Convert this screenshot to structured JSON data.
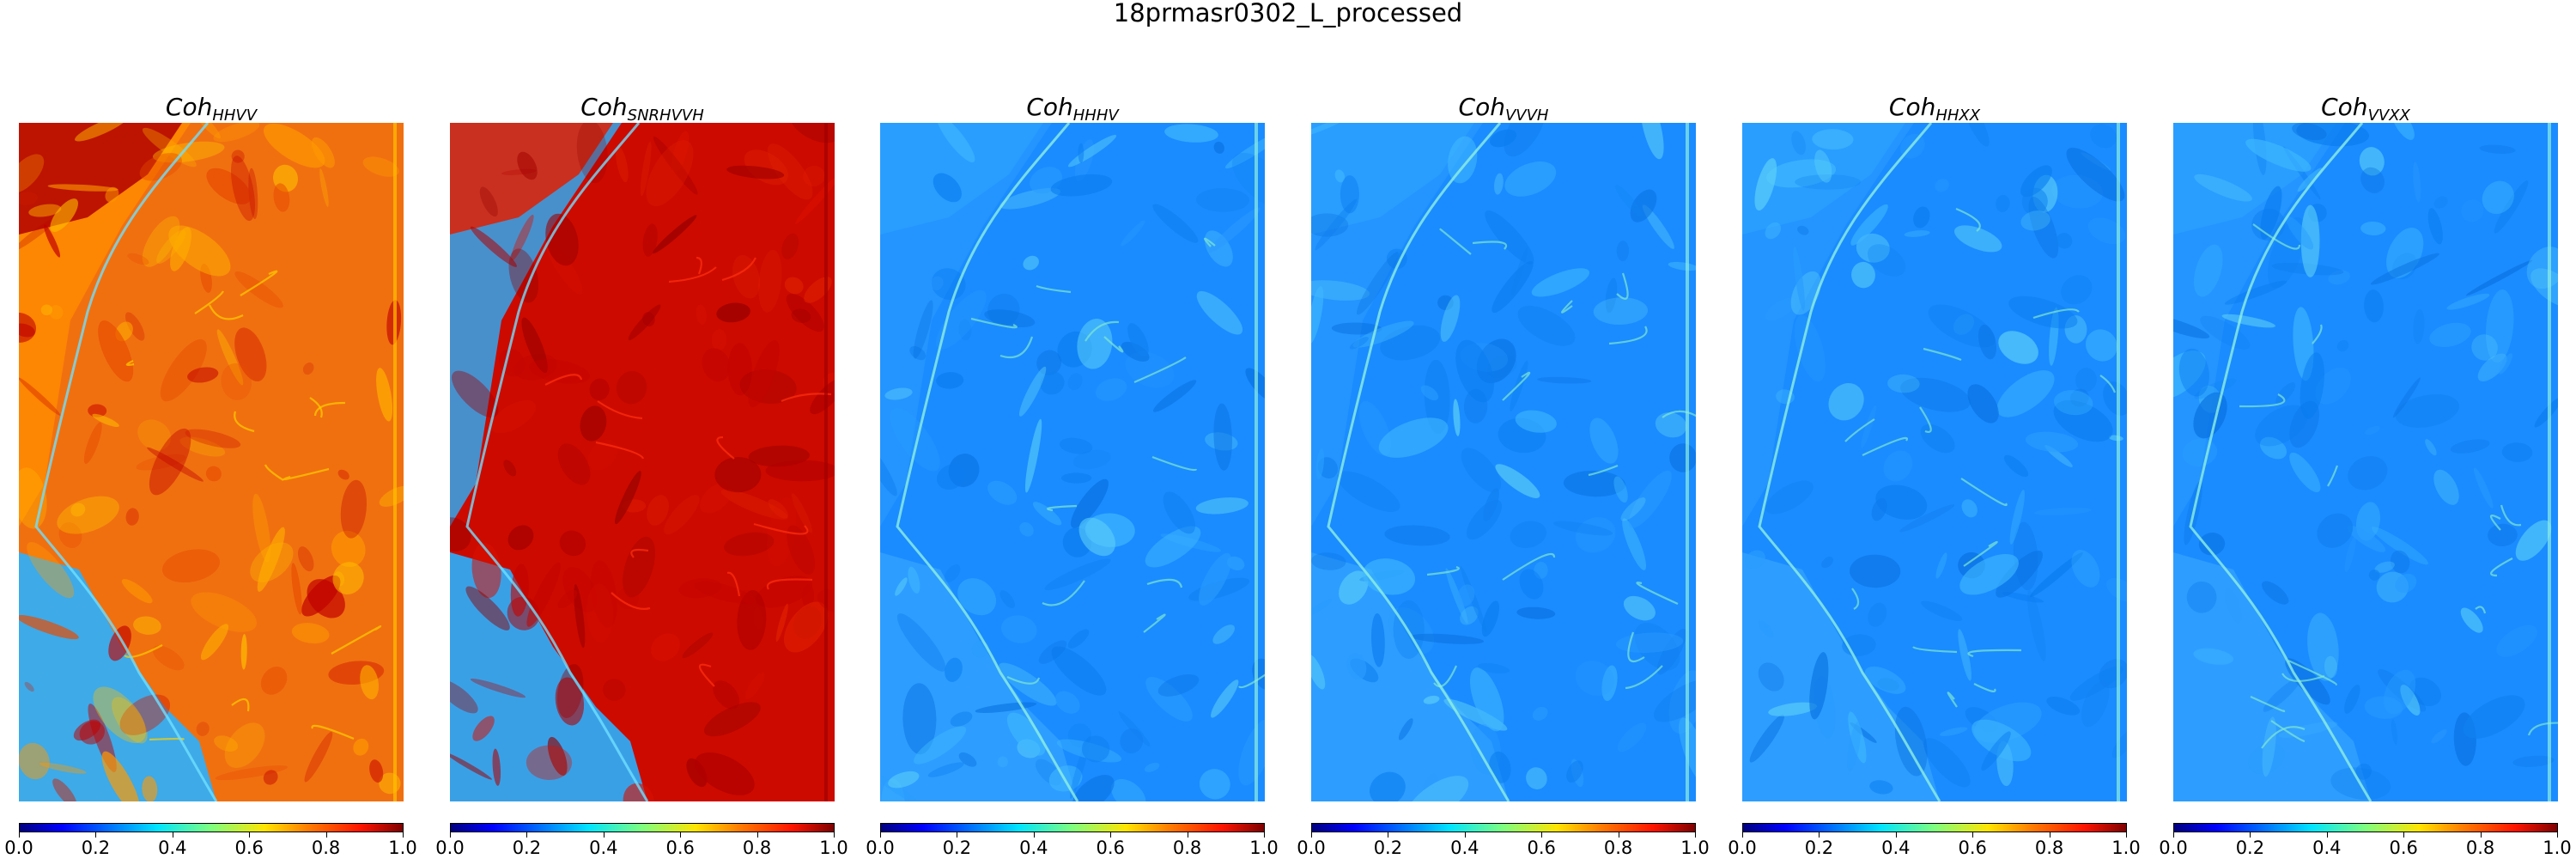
{
  "figure": {
    "suptitle": "18prmasr0302_L_processed"
  },
  "panels": [
    {
      "title_base": "Coh",
      "title_sub": "HHVV",
      "palette": "high"
    },
    {
      "title_base": "Coh",
      "title_sub": "SNRHVVH",
      "palette": "veryhigh"
    },
    {
      "title_base": "Coh",
      "title_sub": "HHHV",
      "palette": "low"
    },
    {
      "title_base": "Coh",
      "title_sub": "VVVH",
      "palette": "low"
    },
    {
      "title_base": "Coh",
      "title_sub": "HHXX",
      "palette": "low"
    },
    {
      "title_base": "Coh",
      "title_sub": "VVXX",
      "palette": "low"
    }
  ],
  "colorbar": {
    "colormap": "jet",
    "ticks": [
      "0.0",
      "0.2",
      "0.4",
      "0.6",
      "0.8",
      "1.0"
    ]
  }
}
